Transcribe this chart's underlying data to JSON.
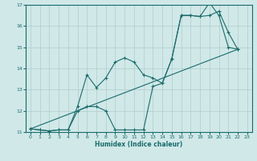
{
  "title": "",
  "xlabel": "Humidex (Indice chaleur)",
  "xlim": [
    -0.5,
    23.5
  ],
  "ylim": [
    11,
    17
  ],
  "yticks": [
    11,
    12,
    13,
    14,
    15,
    16,
    17
  ],
  "xticks": [
    0,
    1,
    2,
    3,
    4,
    5,
    6,
    7,
    8,
    9,
    10,
    11,
    12,
    13,
    14,
    15,
    16,
    17,
    18,
    19,
    20,
    21,
    22,
    23
  ],
  "background_color": "#d0e8e8",
  "grid_color": "#b0cccc",
  "line_color": "#1a6b6b",
  "line1_x": [
    0,
    1,
    2,
    3,
    4,
    5,
    6,
    7,
    8,
    9,
    10,
    11,
    12,
    13,
    14,
    15,
    16,
    17,
    18,
    19,
    20,
    21,
    22
  ],
  "line1_y": [
    11.15,
    11.1,
    11.05,
    11.1,
    11.1,
    12.2,
    13.7,
    13.1,
    13.55,
    14.3,
    14.5,
    14.3,
    13.7,
    13.55,
    13.3,
    14.45,
    16.5,
    16.5,
    16.45,
    17.1,
    16.5,
    15.0,
    14.9
  ],
  "line2_x": [
    0,
    1,
    2,
    3,
    4,
    5,
    6,
    7,
    8,
    9,
    10,
    11,
    12,
    13,
    14,
    15,
    16,
    17,
    18,
    19,
    20,
    21,
    22
  ],
  "line2_y": [
    11.15,
    11.1,
    11.05,
    11.1,
    11.1,
    12.0,
    12.2,
    12.2,
    12.0,
    11.1,
    11.1,
    11.1,
    11.1,
    13.15,
    13.3,
    14.45,
    16.5,
    16.5,
    16.45,
    16.5,
    16.7,
    15.7,
    14.9
  ],
  "line3_x": [
    0,
    22
  ],
  "line3_y": [
    11.15,
    14.9
  ],
  "figsize": [
    3.2,
    2.0
  ],
  "dpi": 100
}
